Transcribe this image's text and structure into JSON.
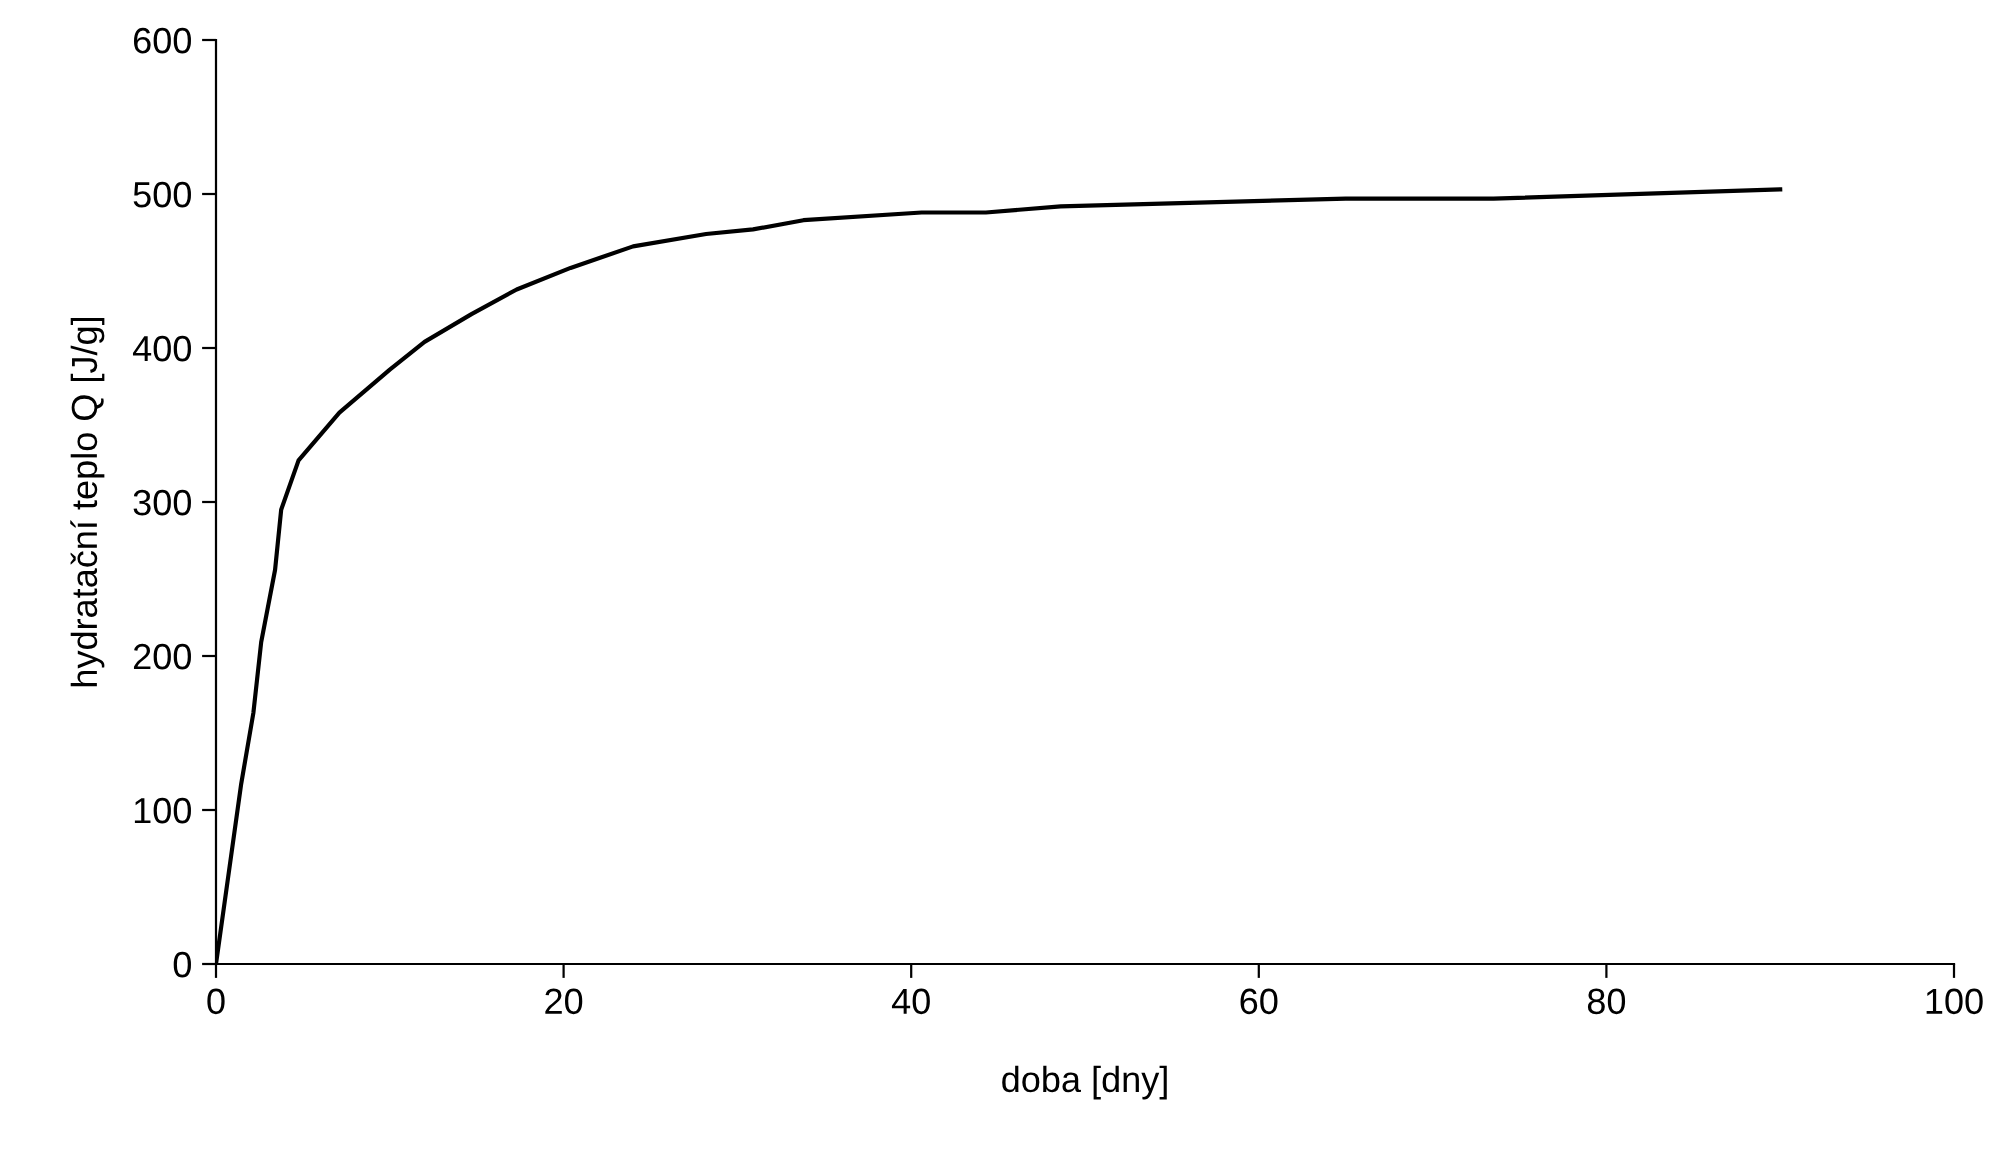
{
  "chart_data": {
    "type": "line",
    "xlabel": "doba [dny]",
    "ylabel": "hydratační teplo Q [J/g]",
    "x": [
      0,
      1.45,
      2.15,
      2.6,
      3.4,
      3.75,
      4.75,
      7.1,
      10,
      12,
      14.7,
      17.3,
      20.4,
      24,
      28.2,
      30.9,
      33.8,
      40.6,
      44.3,
      48.6,
      65,
      73.5,
      90
    ],
    "series": [
      {
        "color": "#000000",
        "values": [
          0,
          117,
          163,
          209,
          256,
          295,
          327,
          358,
          386,
          404,
          422,
          438,
          452,
          466,
          474,
          477,
          483,
          488,
          488,
          492,
          497,
          497,
          503
        ]
      }
    ],
    "xlim": [
      0,
      100
    ],
    "xticks": [
      0,
      20,
      40,
      60,
      80,
      100
    ],
    "ylim": [
      0,
      600
    ],
    "yticks": [
      0,
      100,
      200,
      300,
      400,
      500,
      600
    ],
    "grid": false,
    "legend": false,
    "marker": "none",
    "line_style": "solid"
  }
}
